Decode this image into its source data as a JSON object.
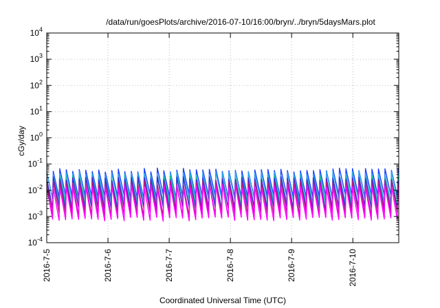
{
  "chart_data": {
    "type": "line",
    "title": "/data/run/goesPlots/archive/2016-07-10/16:00/bryn/../bryn/5daysMars.plot",
    "xlabel": "Coordinated Universal Time (UTC)",
    "ylabel": "cGy/day",
    "y_scale": "log",
    "ylim": [
      0.0001,
      10000
    ],
    "xlim": [
      "2016-07-05 00:00",
      "2016-07-10 18:00"
    ],
    "x_ticks": [
      "2016-7-5",
      "2016-7-6",
      "2016-7-7",
      "2016-7-8",
      "2016-7-9",
      "2016-7-10"
    ],
    "y_ticks": [
      {
        "value": 0.0001,
        "base": "10",
        "exp": "-4"
      },
      {
        "value": 0.001,
        "base": "10",
        "exp": "-3"
      },
      {
        "value": 0.01,
        "base": "10",
        "exp": "-2"
      },
      {
        "value": 0.1,
        "base": "10",
        "exp": "-1"
      },
      {
        "value": 1,
        "base": "10",
        "exp": "0"
      },
      {
        "value": 10,
        "base": "10",
        "exp": "1"
      },
      {
        "value": 100,
        "base": "10",
        "exp": "2"
      },
      {
        "value": 1000,
        "base": "10",
        "exp": "3"
      },
      {
        "value": 10000,
        "base": "10",
        "exp": "4"
      }
    ],
    "grid": true,
    "legend": false,
    "cycle_hours": 2.55,
    "series": [
      {
        "color": "#1f3fff",
        "peak": 0.06,
        "trough": 0.006
      },
      {
        "color": "#2aa7e8",
        "peak": 0.045,
        "trough": 0.004
      },
      {
        "color": "#14c08a",
        "peak": 0.03,
        "trough": 0.0025
      },
      {
        "color": "#3a2bd0",
        "peak": 0.028,
        "trough": 0.002
      },
      {
        "color": "#c0128a",
        "peak": 0.02,
        "trough": 0.0012
      },
      {
        "color": "#ff00ff",
        "peak": 0.014,
        "trough": 0.0008
      }
    ]
  }
}
